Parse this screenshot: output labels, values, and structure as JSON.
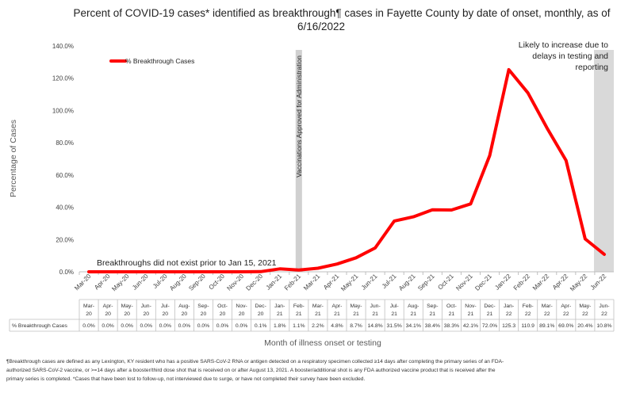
{
  "chart_data": {
    "type": "line",
    "title": "Percent of COVID-19 cases* identified as breakthrough¶ cases in Fayette County by date of onset, monthly, as of 6/16/2022",
    "xlabel": "Month of illness onset or testing",
    "ylabel": "Percentage of Cases",
    "ylim": [
      0,
      140
    ],
    "yticks": [
      "0.0%",
      "20.0%",
      "40.0%",
      "60.0%",
      "80.0%",
      "100.0%",
      "120.0%",
      "140.0%"
    ],
    "legend_position": "top-left",
    "grid": false,
    "categories": [
      "Mar-20",
      "Apr-20",
      "May-20",
      "Jun-20",
      "Jul-20",
      "Aug-20",
      "Sep-20",
      "Oct-20",
      "Nov-20",
      "Dec-20",
      "Jan-21",
      "Feb-21",
      "Mar-21",
      "Apr-21",
      "May-21",
      "Jun-21",
      "Jul-21",
      "Aug-21",
      "Sep-21",
      "Oct-21",
      "Nov-21",
      "Dec-21",
      "Jan-22",
      "Feb-22",
      "Mar-22",
      "Apr-22",
      "May-22",
      "Jun-22"
    ],
    "table_month_labels": [
      "Mar-",
      "Apr-",
      "May-",
      "Jun-",
      "Jul-",
      "Aug-",
      "Sep-",
      "Oct-",
      "Nov-",
      "Dec-",
      "Jan-",
      "Feb-",
      "Mar-",
      "Apr-",
      "May-",
      "Jun-",
      "Jul-",
      "Aug-",
      "Sep-",
      "Oct-",
      "Nov-",
      "Dec-",
      "Jan-",
      "Feb-",
      "Mar-",
      "Apr-",
      "May-",
      "Jun-"
    ],
    "table_year_labels": [
      "20",
      "20",
      "20",
      "20",
      "20",
      "20",
      "20",
      "20",
      "20",
      "20",
      "21",
      "21",
      "21",
      "21",
      "21",
      "21",
      "21",
      "21",
      "21",
      "21",
      "21",
      "21",
      "22",
      "22",
      "22",
      "22",
      "22",
      "22"
    ],
    "series": [
      {
        "name": "% Breakthrough Cases",
        "color": "#ff0000",
        "values": [
          0.0,
          0.0,
          0.0,
          0.0,
          0.0,
          0.0,
          0.0,
          0.0,
          0.0,
          0.1,
          1.8,
          1.1,
          2.2,
          4.8,
          8.7,
          14.8,
          31.5,
          34.1,
          38.4,
          38.3,
          42.1,
          72.0,
          125.3,
          110.9,
          89.1,
          69.0,
          20.4,
          10.8
        ],
        "table_labels": [
          "0.0%",
          "0.0%",
          "0.0%",
          "0.0%",
          "0.0%",
          "0.0%",
          "0.0%",
          "0.0%",
          "0.0%",
          "0.1%",
          "1.8%",
          "1.1%",
          "2.2%",
          "4.8%",
          "8.7%",
          "14.8%",
          "31.5%",
          "34.1%",
          "38.4%",
          "38.3%",
          "42.1%",
          "72.0%",
          "125.3",
          "110.9",
          "89.1%",
          "69.0%",
          "20.4%",
          "10.8%"
        ]
      }
    ],
    "shaded_months": [
      {
        "category": "Feb-21",
        "color": "#d0d0d0",
        "label": "Vaccinations Approved for Administration"
      },
      {
        "category": "Jun-22",
        "color": "#d9d9d9"
      }
    ],
    "annotations": {
      "pre_vaccine": "Breakthroughs did not exist prior to Jan 15, 2021",
      "likely_increase_lines": [
        "Likely to increase due to",
        "delays in testing and",
        "reporting"
      ]
    },
    "footnote_lines": [
      "¶Breakthrough cases are defined as any Lexington, KY resident who has a positive SARS-CoV-2 RNA or antigen detected on a respiratory specimen collected ≥14 days after completing the primary series of an FDA-",
      "authorized SARS-CoV-2 vaccine, or >=14 days after a booster/third dose shot that is received on or after August 13, 2021.  A booster/additional shot is any FDA authorized vaccine product that is received after the",
      "primary series is completed. *Cases that have been lost to follow-up, not interviewed due to surge, or have not completed their survey have been excluded."
    ]
  }
}
